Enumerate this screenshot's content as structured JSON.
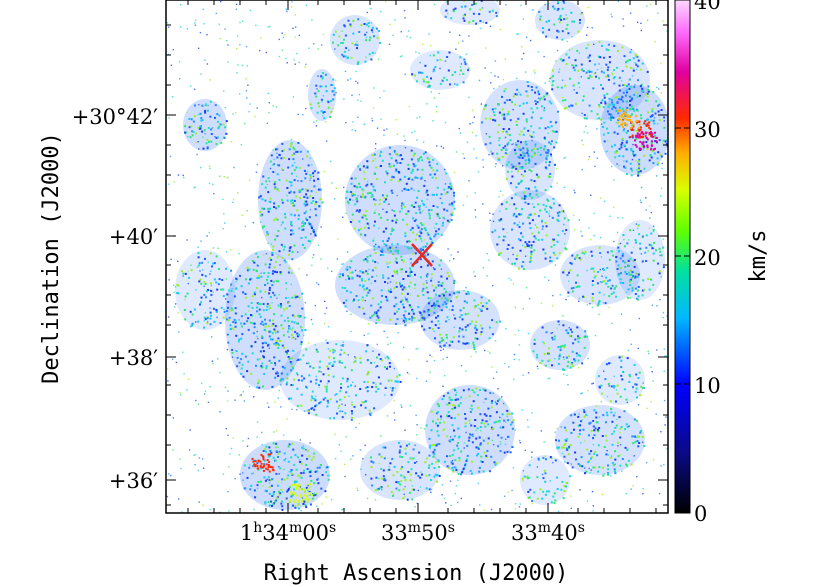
{
  "figure": {
    "xlabel": "Right Ascension (J2000)",
    "ylabel": "Declination (J2000)",
    "x_ticks": [
      {
        "h": "1",
        "m": "34",
        "s": "00",
        "show_h": true
      },
      {
        "h": "",
        "m": "33",
        "s": "50",
        "show_h": false
      },
      {
        "h": "",
        "m": "33",
        "s": "40",
        "show_h": false
      }
    ],
    "y_ticks": [
      {
        "label": "+30°42′"
      },
      {
        "label": "+40′"
      },
      {
        "label": "+38′"
      },
      {
        "label": "+36′"
      }
    ],
    "colorbar": {
      "unit": "km/s",
      "range": [
        0,
        40
      ],
      "ticks": [
        "0",
        "10",
        "20",
        "30",
        "40"
      ]
    },
    "marker": {
      "symbol": "cross",
      "color": "#e8281e"
    }
  }
}
